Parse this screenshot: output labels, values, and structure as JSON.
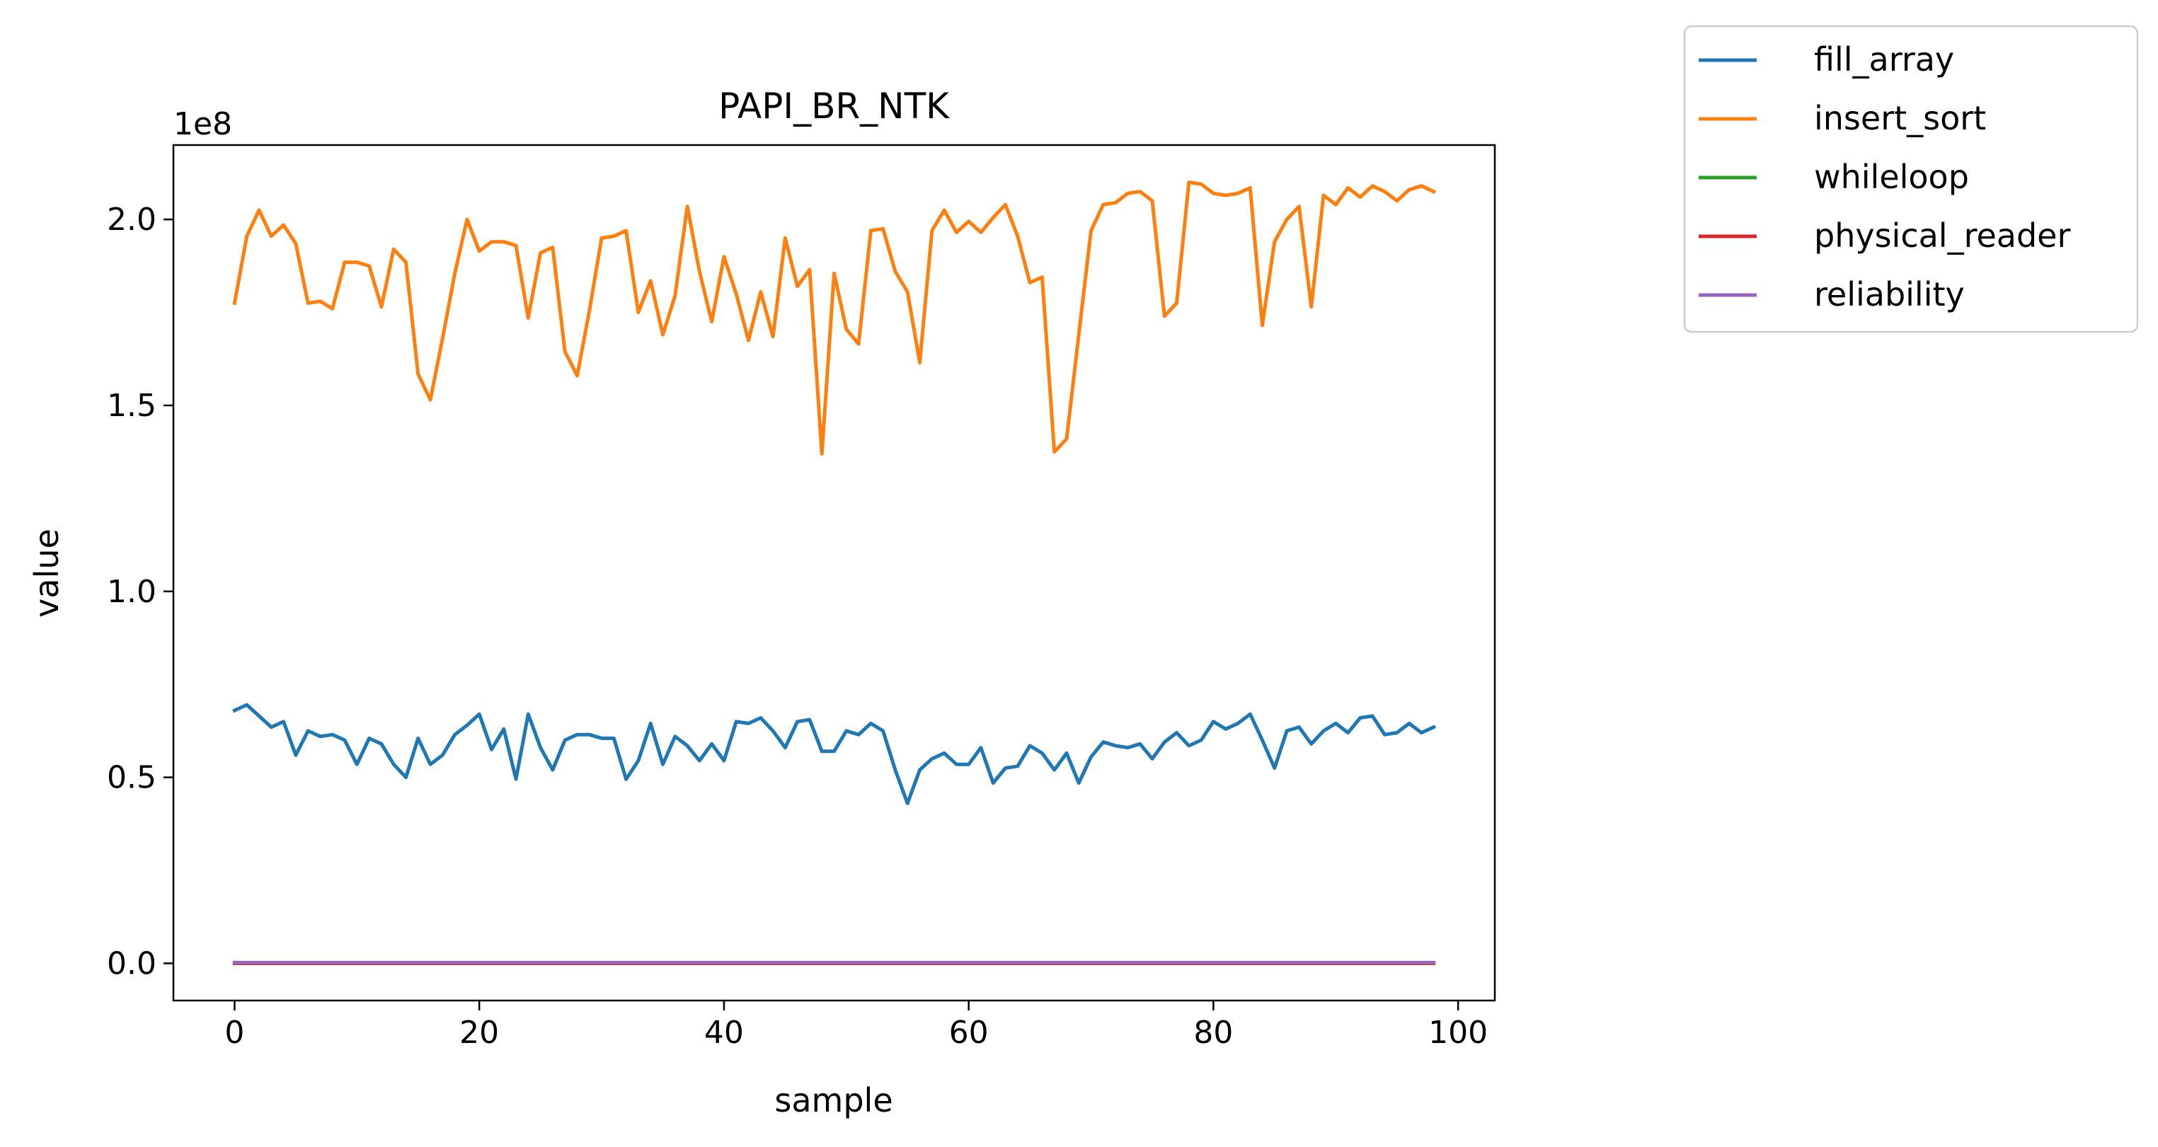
{
  "chart_data": {
    "type": "line",
    "title": "PAPI_BR_NTK",
    "xlabel": "sample",
    "ylabel": "value",
    "y_offset_label": "1e8",
    "xlim": [
      -5,
      103
    ],
    "ylim": [
      -0.1,
      2.2
    ],
    "y_scale": 100000000.0,
    "xticks": [
      0,
      20,
      40,
      60,
      80,
      100
    ],
    "yticks": [
      0.0,
      0.5,
      1.0,
      1.5,
      2.0
    ],
    "xtick_labels": [
      "0",
      "20",
      "40",
      "60",
      "80",
      "100"
    ],
    "ytick_labels": [
      "0.0",
      "0.5",
      "1.0",
      "1.5",
      "2.0"
    ],
    "legend_position": "outside-top-right",
    "grid": false,
    "series": [
      {
        "name": "fill_array",
        "color": "#1f77b4",
        "x_start": 0,
        "values": [
          0.68,
          0.695,
          0.665,
          0.635,
          0.65,
          0.56,
          0.625,
          0.61,
          0.615,
          0.6,
          0.535,
          0.605,
          0.59,
          0.535,
          0.5,
          0.605,
          0.535,
          0.56,
          0.615,
          0.64,
          0.67,
          0.575,
          0.63,
          0.495,
          0.67,
          0.58,
          0.52,
          0.6,
          0.615,
          0.615,
          0.605,
          0.605,
          0.495,
          0.545,
          0.645,
          0.535,
          0.61,
          0.585,
          0.545,
          0.59,
          0.545,
          0.65,
          0.645,
          0.66,
          0.625,
          0.58,
          0.65,
          0.655,
          0.57,
          0.57,
          0.625,
          0.615,
          0.645,
          0.625,
          0.52,
          0.43,
          0.52,
          0.55,
          0.565,
          0.535,
          0.535,
          0.58,
          0.485,
          0.525,
          0.53,
          0.585,
          0.565,
          0.52,
          0.565,
          0.485,
          0.555,
          0.595,
          0.585,
          0.58,
          0.59,
          0.55,
          0.595,
          0.62,
          0.585,
          0.6,
          0.65,
          0.63,
          0.645,
          0.67,
          0.6,
          0.525,
          0.625,
          0.635,
          0.59,
          0.625,
          0.645,
          0.62,
          0.66,
          0.665,
          0.615,
          0.62,
          0.645,
          0.62,
          0.635
        ]
      },
      {
        "name": "insert_sort",
        "color": "#ff7f0e",
        "x_start": 0,
        "values": [
          1.775,
          1.955,
          2.025,
          1.955,
          1.985,
          1.935,
          1.775,
          1.78,
          1.76,
          1.885,
          1.885,
          1.875,
          1.765,
          1.92,
          1.885,
          1.585,
          1.515,
          1.68,
          1.855,
          2.0,
          1.915,
          1.94,
          1.94,
          1.93,
          1.735,
          1.91,
          1.925,
          1.645,
          1.58,
          1.755,
          1.95,
          1.955,
          1.97,
          1.75,
          1.835,
          1.69,
          1.795,
          2.035,
          1.86,
          1.725,
          1.9,
          1.8,
          1.675,
          1.805,
          1.685,
          1.95,
          1.82,
          1.865,
          1.37,
          1.855,
          1.705,
          1.665,
          1.97,
          1.975,
          1.86,
          1.805,
          1.615,
          1.97,
          2.025,
          1.965,
          1.995,
          1.965,
          2.005,
          2.04,
          1.955,
          1.83,
          1.845,
          1.375,
          1.41,
          1.69,
          1.97,
          2.04,
          2.045,
          2.07,
          2.075,
          2.05,
          1.74,
          1.775,
          2.1,
          2.095,
          2.07,
          2.065,
          2.07,
          2.085,
          1.715,
          1.94,
          2.0,
          2.035,
          1.765,
          2.065,
          2.04,
          2.085,
          2.06,
          2.09,
          2.075,
          2.05,
          2.08,
          2.09,
          2.075
        ]
      },
      {
        "name": "whileloop",
        "color": "#2ca02c",
        "x_start": 0,
        "constant": 0.0,
        "count": 99
      },
      {
        "name": "physical_reader",
        "color": "#d62728",
        "x_start": 0,
        "constant": 0.0,
        "count": 99
      },
      {
        "name": "reliability",
        "color": "#9467bd",
        "x_start": 0,
        "constant": 0.002,
        "count": 99
      }
    ]
  }
}
